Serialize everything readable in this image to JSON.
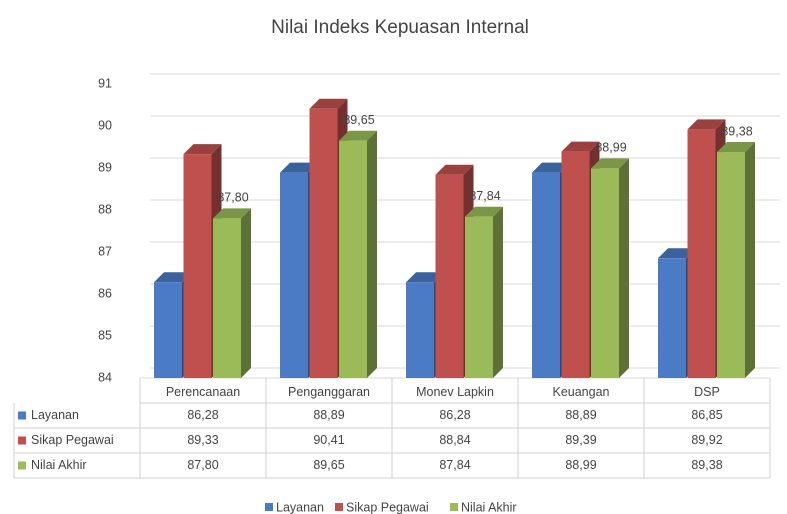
{
  "chart_data": {
    "type": "bar",
    "title": "Nilai Indeks Kepuasan Internal",
    "categories": [
      "Perencanaan",
      "Penganggaran",
      "Monev Lapkin",
      "Keuangan",
      "DSP"
    ],
    "series": [
      {
        "name": "Layanan",
        "color": "#4a7bc4",
        "values": [
          86.28,
          88.89,
          86.28,
          88.89,
          86.85
        ],
        "value_labels": [
          "86,28",
          "88,89",
          "86,28",
          "88,89",
          "86,85"
        ]
      },
      {
        "name": "Sikap Pegawai",
        "color": "#c0504d",
        "values": [
          89.33,
          90.41,
          88.84,
          89.39,
          89.92
        ],
        "value_labels": [
          "89,33",
          "90,41",
          "88,84",
          "89,39",
          "89,92"
        ]
      },
      {
        "name": "Nilai Akhir",
        "color": "#9bbb59",
        "values": [
          87.8,
          89.65,
          87.84,
          88.99,
          89.38
        ],
        "value_labels": [
          "87,80",
          "89,65",
          "87,84",
          "88,99",
          "89,38"
        ]
      }
    ],
    "ylim": [
      84,
      91
    ],
    "yticks": [
      84,
      85,
      86,
      87,
      88,
      89,
      90,
      91
    ],
    "grid": true,
    "legend": "bottom"
  }
}
